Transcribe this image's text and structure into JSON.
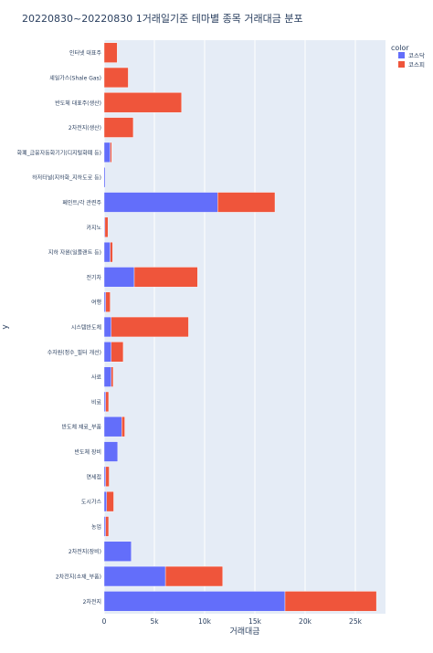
{
  "chart_data": {
    "type": "bar",
    "orientation": "horizontal",
    "barmode": "stack",
    "title": "20220830~20220830 1거래일기준 테마별 종목 거래대금 분포",
    "xlabel": "거래대금",
    "ylabel": "y",
    "xlim": [
      0,
      28000
    ],
    "xticks": [
      0,
      5000,
      10000,
      15000,
      20000,
      25000
    ],
    "xtick_labels": [
      "0",
      "5k",
      "10k",
      "15k",
      "20k",
      "25k"
    ],
    "legend": {
      "title": "color",
      "position": "top-right"
    },
    "categories": [
      "인터넷 대표주",
      "셰일가스(Shale Gas)",
      "반도체 대표주(생산)",
      "2차전지(생산)",
      "화폐_금융자동화기기(디지털화폐 등)",
      "하저터널(지하화_지하도로 등)",
      "페인트/각 관련주",
      "카지노",
      "지하 자원(일플랜트 등)",
      "전기차",
      "여행",
      "시스템반도체",
      "수자원(정수_필터 개선)",
      "사료",
      "비료",
      "반도체 재료_부품",
      "반도체 장비",
      "면세점",
      "도시가스",
      "농업",
      "2차전지(장비)",
      "2차전지(소재_부품)",
      "2차전지"
    ],
    "series": [
      {
        "name": "코스닥",
        "color": "#636efa",
        "values": [
          0,
          0,
          0,
          0,
          600,
          120,
          11300,
          80,
          600,
          3000,
          150,
          700,
          700,
          700,
          150,
          1750,
          1350,
          150,
          250,
          150,
          2700,
          6100,
          18000
        ]
      },
      {
        "name": "코스피",
        "color": "#ef553b",
        "values": [
          1300,
          2400,
          7700,
          2900,
          150,
          0,
          5700,
          300,
          250,
          6300,
          450,
          7700,
          1200,
          200,
          300,
          300,
          0,
          350,
          700,
          300,
          0,
          5700,
          9100
        ]
      }
    ]
  }
}
